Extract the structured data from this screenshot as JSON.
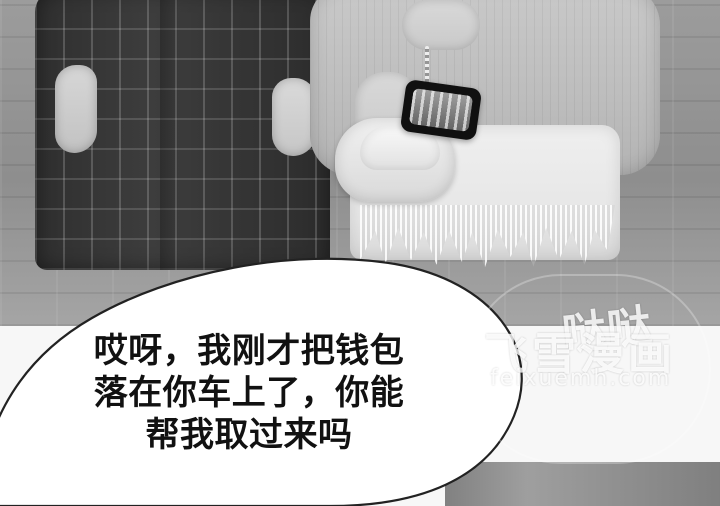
{
  "speech_bubble": {
    "lines": [
      "哎呀，我刚才把钱包",
      "落在你车上了，你能",
      "帮我取过来吗"
    ]
  },
  "watermark": {
    "logo": "哒哒",
    "title": "飞雪漫画",
    "url": "feixuemh.com"
  }
}
